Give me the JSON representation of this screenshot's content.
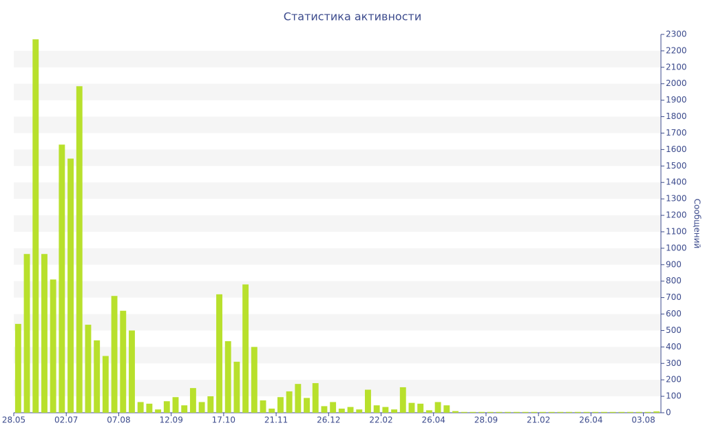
{
  "chart_data": {
    "type": "bar",
    "title": "Статистика активности",
    "y_label": "Сообщений",
    "categories": [
      "28.05",
      null,
      null,
      null,
      null,
      null,
      "02.07",
      null,
      null,
      null,
      null,
      null,
      "07.08",
      null,
      null,
      null,
      null,
      null,
      "12.09",
      null,
      null,
      null,
      null,
      null,
      "17.10",
      null,
      null,
      null,
      null,
      null,
      "21.11",
      null,
      null,
      null,
      null,
      null,
      "26.12",
      null,
      null,
      null,
      null,
      null,
      "22.02",
      null,
      null,
      null,
      null,
      null,
      "26.04",
      null,
      null,
      null,
      null,
      null,
      "28.09",
      null,
      null,
      null,
      null,
      null,
      "21.02",
      null,
      null,
      null,
      null,
      null,
      "26.04",
      null,
      null,
      null,
      null,
      null,
      "03.08",
      null
    ],
    "values": [
      540,
      965,
      2270,
      965,
      810,
      1630,
      1545,
      1985,
      535,
      440,
      345,
      710,
      620,
      500,
      65,
      55,
      20,
      70,
      95,
      45,
      150,
      65,
      100,
      720,
      435,
      310,
      780,
      400,
      75,
      25,
      95,
      130,
      175,
      90,
      180,
      40,
      65,
      25,
      35,
      20,
      140,
      45,
      35,
      20,
      155,
      60,
      55,
      15,
      65,
      45,
      10,
      5,
      5,
      5,
      5,
      5,
      5,
      5,
      5,
      5,
      5,
      5,
      5,
      5,
      5,
      5,
      5,
      5,
      5,
      5,
      5,
      5,
      5,
      8
    ],
    "color": "#b8e02c",
    "ylim": [
      0,
      2300
    ],
    "yticks": [
      0,
      100,
      200,
      300,
      400,
      500,
      600,
      700,
      800,
      900,
      1000,
      1100,
      1200,
      1300,
      1400,
      1500,
      1600,
      1700,
      1800,
      1900,
      2000,
      2100,
      2200,
      2300
    ],
    "grid": true
  }
}
